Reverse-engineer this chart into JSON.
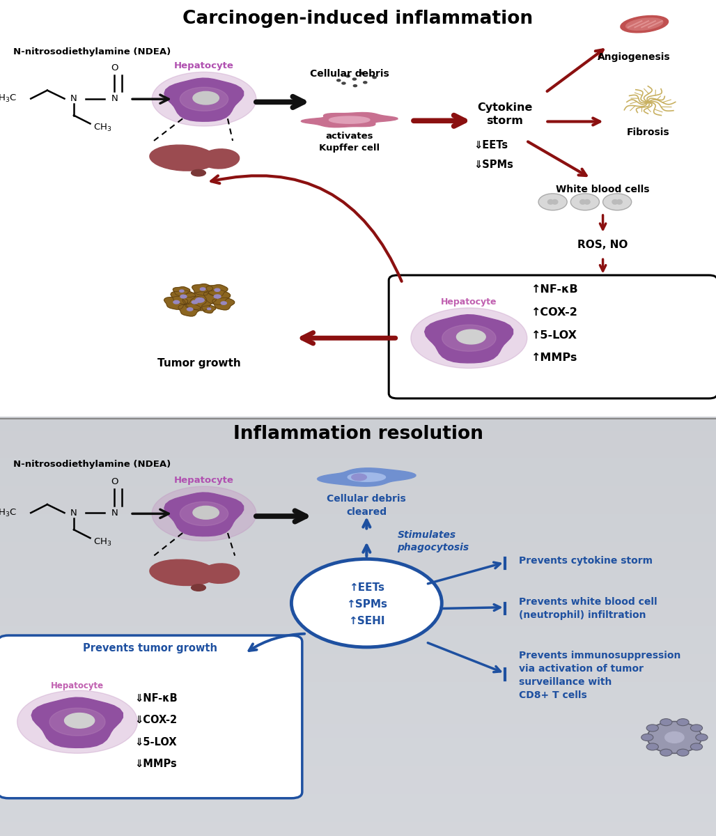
{
  "top_bg": "#FAF5C8",
  "bottom_bg_top": "#D0D4E0",
  "bottom_bg_bot": "#C8CCD8",
  "top_title": "Carcinogen-induced inflammation",
  "bottom_title": "Inflammation resolution",
  "ndea_label": "N-nitrosodiethylamine (NDEA)",
  "dark_red": "#8B1010",
  "blue": "#1E50A0",
  "black": "#111111",
  "white": "#FFFFFF",
  "liver_dark": "#9B4B50",
  "liver_light": "#B06060",
  "cell_outer": "#C080B8",
  "cell_mid": "#9050A0",
  "cell_inner": "#D0D0D0",
  "kupffer_color": "#C87090",
  "kupffer_light": "#E0A0B8",
  "tumor_brown": "#8B6520",
  "tumor_light": "#A07830",
  "tumor_nucleus": "#9888C0",
  "wbc_color": "#CCCCCC",
  "wbc_edge": "#AAAAAA",
  "fibrosis_color": "#C8B060",
  "angio_red": "#C05050",
  "angio_pink": "#E08080",
  "blue_cell": "#7090D0",
  "blue_cell_light": "#A0B8E8",
  "tcell_color": "#9090A8",
  "border_color": "#888888"
}
